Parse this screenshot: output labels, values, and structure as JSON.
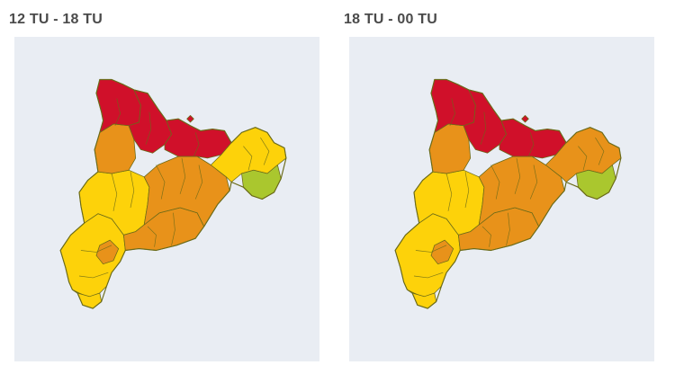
{
  "panels": [
    {
      "title": "12 TU - 18 TU",
      "levels": {
        "northwest": "red",
        "pyrenees_west": "red",
        "pyrenees_east": "red",
        "west_upper": "orange",
        "central_band": "orange",
        "central_south": "orange",
        "northeast": "yellow",
        "east": "green",
        "west": "yellow",
        "south": "yellow",
        "south_pocket": "orange"
      }
    },
    {
      "title": "18 TU - 00 TU",
      "levels": {
        "northwest": "red",
        "pyrenees_west": "red",
        "pyrenees_east": "red",
        "west_upper": "orange",
        "central_band": "orange",
        "central_south": "orange",
        "northeast": "orange",
        "east": "green",
        "west": "yellow",
        "south": "yellow",
        "south_pocket": "orange"
      }
    }
  ],
  "colors": {
    "background": "#e9edf3",
    "red": "#d0102a",
    "orange": "#e8921a",
    "yellow": "#fdd20a",
    "green": "#aac72e"
  }
}
